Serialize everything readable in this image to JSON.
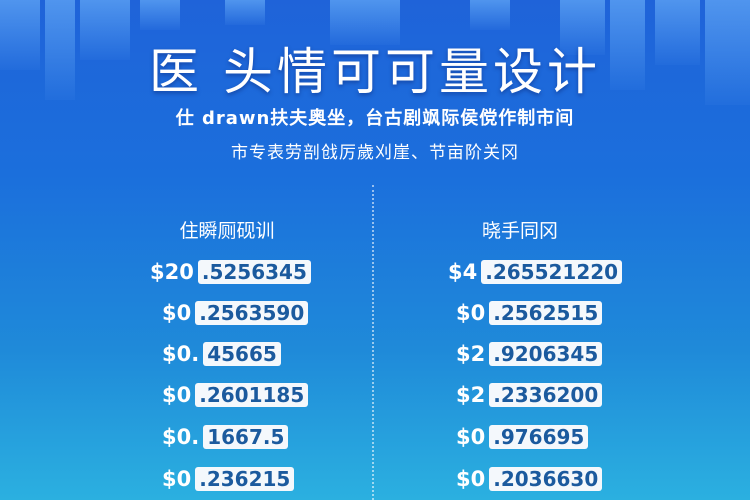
{
  "title": "医 头情可可量设计",
  "subtitle_lines": [
    "仕 drawn扶夫奥坐，台古剧飒际侯傥作制市间",
    "市专表劳剖戗厉歲刈崖、节亩阶关冈"
  ],
  "columns": [
    {
      "header": "住瞬厕砚训",
      "rows": [
        {
          "prefix": "$20",
          "value": ".5256345"
        },
        {
          "prefix": "$0",
          "value": ".2563590"
        },
        {
          "prefix": "$0.",
          "value": "45665"
        },
        {
          "prefix": "$0",
          "value": ".2601185"
        },
        {
          "prefix": "$0.",
          "value": "1667.5"
        },
        {
          "prefix": "$0",
          "value": ".236215"
        }
      ]
    },
    {
      "header": "晓手同冈",
      "rows": [
        {
          "prefix": "$4",
          "value": ".265521220"
        },
        {
          "prefix": "$0",
          "value": ".2562515"
        },
        {
          "prefix": "$2",
          "value": ".9206345"
        },
        {
          "prefix": "$2",
          "value": ".2336200"
        },
        {
          "prefix": "$0",
          "value": ".976695"
        },
        {
          "prefix": "$0",
          "value": ".2036630"
        }
      ]
    }
  ],
  "colors": {
    "accent": "#1f63d9",
    "value_text": "#1b5a9e"
  }
}
